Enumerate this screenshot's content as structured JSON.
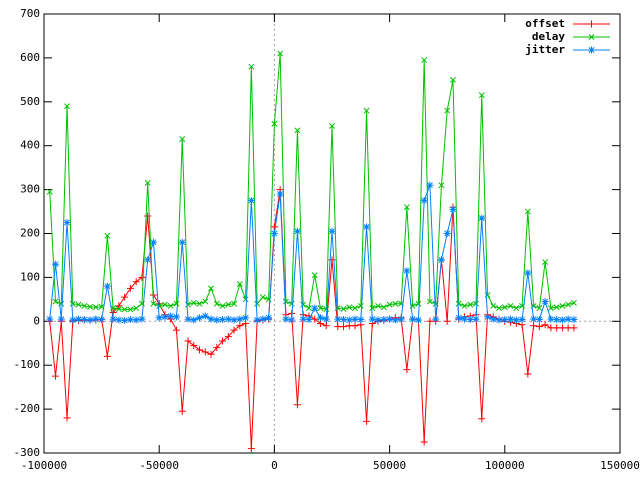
{
  "chart_data": {
    "type": "line",
    "x": [
      -97500,
      -95000,
      -92500,
      -90000,
      -87500,
      -85000,
      -82500,
      -80000,
      -77500,
      -75000,
      -72500,
      -70000,
      -67500,
      -65000,
      -62500,
      -60000,
      -57500,
      -55000,
      -52500,
      -50000,
      -47500,
      -45000,
      -42500,
      -40000,
      -37500,
      -35000,
      -32500,
      -30000,
      -27500,
      -25000,
      -22500,
      -20000,
      -17500,
      -15000,
      -12500,
      -10000,
      -7500,
      -5000,
      -2500,
      0,
      2500,
      5000,
      7500,
      10000,
      12500,
      15000,
      17500,
      20000,
      22500,
      25000,
      27500,
      30000,
      32500,
      35000,
      37500,
      40000,
      42500,
      45000,
      47500,
      50000,
      52500,
      55000,
      57500,
      60000,
      62500,
      65000,
      67500,
      70000,
      72500,
      75000,
      77500,
      80000,
      82500,
      85000,
      87500,
      90000,
      92500,
      95000,
      97500,
      100000,
      102500,
      105000,
      107500,
      110000,
      112500,
      115000,
      117500,
      120000,
      122500,
      125000,
      127500,
      130000
    ],
    "series": [
      {
        "name": "offset",
        "color": "#ff0000",
        "marker": "plus",
        "values": [
          0,
          -125,
          0,
          -220,
          0,
          2,
          3,
          2,
          3,
          5,
          -80,
          20,
          35,
          55,
          75,
          90,
          100,
          240,
          60,
          40,
          15,
          5,
          -20,
          -205,
          -45,
          -55,
          -65,
          -70,
          -75,
          -60,
          -45,
          -35,
          -20,
          -10,
          -5,
          -290,
          0,
          3,
          5,
          215,
          300,
          15,
          18,
          -190,
          15,
          12,
          5,
          -5,
          -10,
          140,
          -12,
          -12,
          -10,
          -10,
          -8,
          -228,
          -5,
          0,
          2,
          5,
          8,
          8,
          -110,
          5,
          3,
          -275,
          0,
          0,
          140,
          0,
          260,
          5,
          10,
          12,
          15,
          -222,
          15,
          10,
          5,
          0,
          -2,
          -5,
          -8,
          -120,
          -10,
          -12,
          -8,
          -15,
          -15,
          -15,
          -15,
          -15
        ]
      },
      {
        "name": "delay",
        "color": "#00c000",
        "marker": "cross",
        "values": [
          295,
          45,
          40,
          490,
          40,
          38,
          35,
          33,
          32,
          33,
          195,
          30,
          28,
          27,
          27,
          30,
          40,
          315,
          40,
          35,
          38,
          35,
          40,
          415,
          38,
          42,
          40,
          45,
          75,
          40,
          35,
          38,
          40,
          85,
          50,
          580,
          40,
          55,
          50,
          450,
          610,
          45,
          40,
          435,
          38,
          30,
          105,
          30,
          28,
          445,
          30,
          28,
          32,
          30,
          35,
          480,
          30,
          35,
          32,
          38,
          40,
          40,
          260,
          35,
          40,
          595,
          45,
          40,
          310,
          480,
          550,
          40,
          35,
          38,
          40,
          515,
          60,
          35,
          30,
          32,
          35,
          30,
          35,
          250,
          35,
          30,
          135,
          30,
          32,
          35,
          38,
          42
        ]
      },
      {
        "name": "jitter",
        "color": "#0080ff",
        "marker": "star",
        "values": [
          5,
          130,
          5,
          225,
          3,
          5,
          4,
          3,
          5,
          4,
          80,
          5,
          3,
          2,
          4,
          3,
          5,
          140,
          180,
          8,
          10,
          12,
          10,
          180,
          5,
          3,
          8,
          12,
          5,
          3,
          4,
          5,
          3,
          5,
          8,
          275,
          3,
          5,
          8,
          200,
          290,
          5,
          3,
          205,
          5,
          4,
          30,
          8,
          5,
          205,
          5,
          4,
          3,
          5,
          4,
          215,
          5,
          3,
          4,
          5,
          3,
          5,
          115,
          5,
          3,
          275,
          310,
          5,
          140,
          200,
          255,
          8,
          5,
          4,
          5,
          235,
          10,
          5,
          3,
          4,
          5,
          3,
          4,
          110,
          5,
          4,
          45,
          5,
          4,
          3,
          5,
          4
        ]
      }
    ],
    "xlim": [
      -100000,
      150000
    ],
    "xticks": [
      -100000,
      -50000,
      0,
      50000,
      100000,
      150000
    ],
    "ylim": [
      -300,
      700
    ],
    "yticks": [
      -300,
      -200,
      -100,
      0,
      100,
      200,
      300,
      400,
      500,
      600,
      700
    ],
    "zeroaxis": true,
    "legend": "top-right"
  }
}
